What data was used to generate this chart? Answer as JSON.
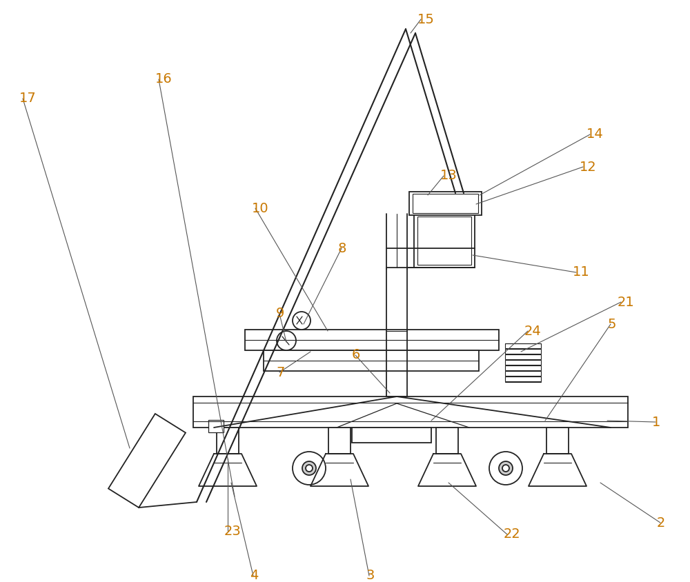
{
  "bg_color": "#ffffff",
  "line_color": "#222222",
  "label_color": "#c87800",
  "fig_width": 10.0,
  "fig_height": 8.44,
  "dpi": 100,
  "annotations": [
    [
      "1",
      945,
      612,
      880,
      610
    ],
    [
      "2",
      952,
      758,
      870,
      700
    ],
    [
      "3",
      530,
      835,
      508,
      695
    ],
    [
      "4",
      362,
      835,
      335,
      700
    ],
    [
      "5",
      880,
      470,
      790,
      610
    ],
    [
      "6",
      510,
      515,
      565,
      570
    ],
    [
      "7",
      400,
      540,
      450,
      510
    ],
    [
      "8",
      490,
      360,
      440,
      470
    ],
    [
      "9",
      400,
      455,
      415,
      496
    ],
    [
      "10",
      365,
      302,
      475,
      480
    ],
    [
      "11",
      830,
      395,
      685,
      370
    ],
    [
      "12",
      840,
      242,
      690,
      296
    ],
    [
      "13",
      638,
      255,
      620,
      283
    ],
    [
      "14",
      850,
      195,
      695,
      283
    ],
    [
      "15",
      605,
      28,
      595,
      48
    ],
    [
      "16",
      225,
      115,
      340,
      720
    ],
    [
      "17",
      28,
      143,
      188,
      650
    ],
    [
      "21",
      895,
      438,
      755,
      510
    ],
    [
      "22",
      730,
      775,
      650,
      700
    ],
    [
      "23",
      325,
      770,
      330,
      665
    ],
    [
      "24",
      760,
      480,
      625,
      610
    ]
  ]
}
